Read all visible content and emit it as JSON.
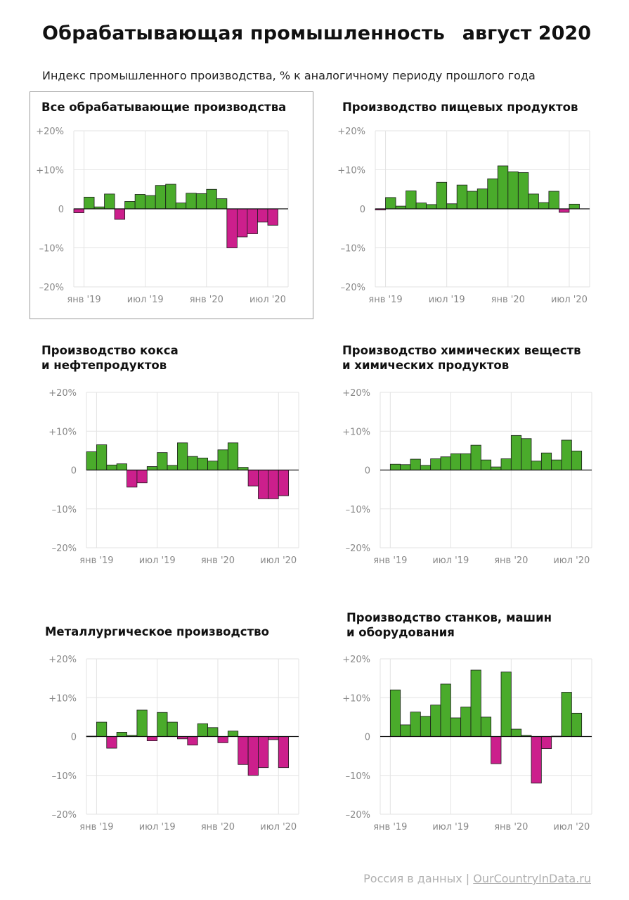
{
  "header": {
    "title": "Обрабатывающая промышленность",
    "date": "август 2020",
    "subtitle": "Индекс промышленного производства, % к аналогичному периоду прошлого года"
  },
  "footer": {
    "source": "Россия в данных | ",
    "link": "OurCountryInData.ru"
  },
  "colors": {
    "positive": "#4aab2b",
    "negative": "#cc1f8c",
    "grid": "#e3e3e3",
    "axis_text": "#888888"
  },
  "chart_data": [
    {
      "type": "bar",
      "title": "Все обрабатывающие производства",
      "yticks": [
        "+20%",
        "+10%",
        "0",
        "–10%",
        "–20%"
      ],
      "xticks": [
        "янв '19",
        "июл '19",
        "янв '20",
        "июл '20"
      ],
      "ylim": [
        -20,
        20
      ],
      "categories": [
        "дек '18",
        "янв '19",
        "фев '19",
        "мар '19",
        "апр '19",
        "май '19",
        "июн '19",
        "июл '19",
        "авг '19",
        "сен '19",
        "окт '19",
        "ноя '19",
        "дек '19",
        "янв '20",
        "фев '20",
        "мар '20",
        "апр '20",
        "май '20",
        "июн '20",
        "июл '20",
        "авг '20"
      ],
      "values": [
        -1,
        3,
        0.5,
        3.8,
        -2.7,
        1.9,
        3.7,
        3.4,
        6,
        6.3,
        1.5,
        4,
        3.9,
        5,
        2.6,
        -10,
        -7.2,
        -6.4,
        -3.4,
        -4.2,
        null
      ]
    },
    {
      "type": "bar",
      "title": "Производство пищевых продуктов",
      "yticks": [
        "+20%",
        "+10%",
        "0",
        "–10%",
        "–20%"
      ],
      "xticks": [
        "янв '19",
        "июл '19",
        "янв '20",
        "июл '20"
      ],
      "ylim": [
        -20,
        20
      ],
      "categories": [
        "дек '18",
        "янв '19",
        "фев '19",
        "мар '19",
        "апр '19",
        "май '19",
        "июн '19",
        "июл '19",
        "авг '19",
        "сен '19",
        "окт '19",
        "ноя '19",
        "дек '19",
        "янв '20",
        "фев '20",
        "мар '20",
        "апр '20",
        "май '20",
        "июн '20",
        "июл '20",
        "авг '20"
      ],
      "values": [
        -0.3,
        2.9,
        0.7,
        4.6,
        1.5,
        1.1,
        6.8,
        1.3,
        6.1,
        4.5,
        5.1,
        7.7,
        11,
        9.5,
        9.3,
        3.8,
        1.6,
        4.5,
        -0.9,
        1.2,
        null
      ]
    },
    {
      "type": "bar",
      "title": "Производство кокса\nи нефтепродуктов",
      "yticks": [
        "+20%",
        "+10%",
        "0",
        "–10%",
        "–20%"
      ],
      "xticks": [
        "янв '19",
        "июл '19",
        "янв '20",
        "июл '20"
      ],
      "ylim": [
        -20,
        20
      ],
      "categories": [
        "дек '18",
        "янв '19",
        "фев '19",
        "мар '19",
        "апр '19",
        "май '19",
        "июн '19",
        "июл '19",
        "авг '19",
        "сен '19",
        "окт '19",
        "ноя '19",
        "дек '19",
        "янв '20",
        "фев '20",
        "мар '20",
        "апр '20",
        "май '20",
        "июн '20",
        "июл '20",
        "авг '20"
      ],
      "values": [
        4.7,
        6.5,
        1.3,
        1.6,
        -4.4,
        -3.3,
        0.9,
        4.5,
        1.2,
        7,
        3.5,
        3.1,
        2.3,
        5.2,
        7,
        0.7,
        -4.1,
        -7.4,
        -7.4,
        -6.6,
        null
      ]
    },
    {
      "type": "bar",
      "title": "Производство химических веществ\nи химических продуктов",
      "yticks": [
        "+20%",
        "+10%",
        "0",
        "–10%",
        "–20%"
      ],
      "xticks": [
        "янв '19",
        "июл '19",
        "янв '20",
        "июл '20"
      ],
      "ylim": [
        -20,
        20
      ],
      "categories": [
        "дек '18",
        "янв '19",
        "фев '19",
        "мар '19",
        "апр '19",
        "май '19",
        "июн '19",
        "июл '19",
        "авг '19",
        "сен '19",
        "окт '19",
        "ноя '19",
        "дек '19",
        "янв '20",
        "фев '20",
        "мар '20",
        "апр '20",
        "май '20",
        "июн '20",
        "июл '20",
        "авг '20"
      ],
      "values": [
        null,
        1.5,
        1.4,
        2.8,
        1.2,
        2.9,
        3.4,
        4.2,
        4.2,
        6.4,
        2.6,
        0.8,
        2.9,
        8.9,
        8.1,
        2.3,
        4.4,
        2.6,
        7.7,
        4.9,
        null
      ]
    },
    {
      "type": "bar",
      "title": "Металлургическое производство",
      "yticks": [
        "+20%",
        "+10%",
        "0",
        "–10%",
        "–20%"
      ],
      "xticks": [
        "янв '19",
        "июл '19",
        "янв '20",
        "июл '20"
      ],
      "ylim": [
        -20,
        20
      ],
      "categories": [
        "дек '18",
        "янв '19",
        "фев '19",
        "мар '19",
        "апр '19",
        "май '19",
        "июн '19",
        "июл '19",
        "авг '19",
        "сен '19",
        "окт '19",
        "ноя '19",
        "дек '19",
        "янв '20",
        "фев '20",
        "мар '20",
        "апр '20",
        "май '20",
        "июн '20",
        "июл '20",
        "авг '20"
      ],
      "values": [
        0.1,
        3.7,
        -3,
        1.1,
        0.3,
        6.8,
        -1.1,
        6.2,
        3.7,
        -0.6,
        -2.2,
        3.3,
        2.3,
        -1.6,
        1.4,
        -7.2,
        -10,
        -8,
        -0.8,
        -8,
        null
      ]
    },
    {
      "type": "bar",
      "title": "Производство станков, машин\nи оборудования",
      "yticks": [
        "+20%",
        "+10%",
        "0",
        "–10%",
        "–20%"
      ],
      "xticks": [
        "янв '19",
        "июл '19",
        "янв '20",
        "июл '20"
      ],
      "ylim": [
        -20,
        20
      ],
      "categories": [
        "дек '18",
        "янв '19",
        "фев '19",
        "мар '19",
        "апр '19",
        "май '19",
        "июн '19",
        "июл '19",
        "авг '19",
        "сен '19",
        "окт '19",
        "ноя '19",
        "дек '19",
        "янв '20",
        "фев '20",
        "мар '20",
        "апр '20",
        "май '20",
        "июн '20",
        "июл '20",
        "авг '20"
      ],
      "values": [
        null,
        12,
        3,
        6.3,
        5.2,
        8.1,
        13.5,
        4.8,
        7.6,
        17.1,
        5,
        -7,
        16.6,
        1.9,
        0.3,
        -12,
        -3.1,
        0.1,
        11.4,
        6,
        null
      ]
    }
  ]
}
